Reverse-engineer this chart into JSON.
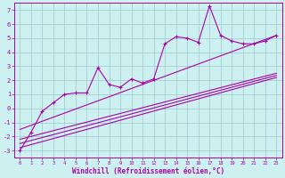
{
  "xlabel": "Windchill (Refroidissement éolien,°C)",
  "bg_color": "#cdf0f0",
  "grid_color": "#a0c8c8",
  "line_color": "#aa00aa",
  "xlim": [
    -0.5,
    23.5
  ],
  "ylim": [
    -3.5,
    7.5
  ],
  "yticks": [
    -3,
    -2,
    -1,
    0,
    1,
    2,
    3,
    4,
    5,
    6,
    7
  ],
  "xticks": [
    0,
    1,
    2,
    3,
    4,
    5,
    6,
    7,
    8,
    9,
    10,
    11,
    12,
    13,
    14,
    15,
    16,
    17,
    18,
    19,
    20,
    21,
    22,
    23
  ],
  "scatter_x": [
    0,
    1,
    2,
    3,
    4,
    5,
    6,
    7,
    8,
    9,
    10,
    11,
    12,
    13,
    14,
    15,
    16,
    17,
    18,
    19,
    20,
    21,
    22,
    23
  ],
  "scatter_y": [
    -3.0,
    -1.7,
    -0.2,
    0.4,
    1.0,
    1.1,
    1.1,
    2.9,
    1.7,
    1.5,
    2.1,
    1.8,
    2.1,
    4.6,
    5.1,
    5.0,
    4.7,
    7.3,
    5.2,
    4.8,
    4.6,
    4.6,
    4.8,
    5.2
  ],
  "regression_lines": [
    {
      "x": [
        0,
        23
      ],
      "y": [
        -2.8,
        2.2
      ]
    },
    {
      "x": [
        0,
        23
      ],
      "y": [
        -2.5,
        2.35
      ]
    },
    {
      "x": [
        0,
        23
      ],
      "y": [
        -2.2,
        2.5
      ]
    },
    {
      "x": [
        0,
        23
      ],
      "y": [
        -1.5,
        5.2
      ]
    }
  ]
}
